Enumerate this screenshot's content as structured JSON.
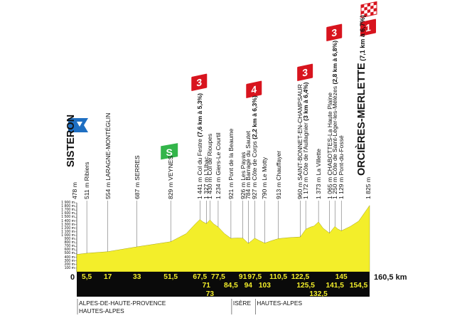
{
  "start": {
    "name": "SISTERON",
    "alt": "478 m"
  },
  "finish": {
    "name": "ORCIÈRES-MERLETTE",
    "alt": "1 825 m",
    "climb": "(7,1 km à 6,7%)"
  },
  "total_km": "160,5 km",
  "start_km": "0",
  "km_labels": [
    {
      "t": "5,5",
      "km": 5.5,
      "row": 0
    },
    {
      "t": "17",
      "km": 17,
      "row": 0
    },
    {
      "t": "33",
      "km": 33,
      "row": 0
    },
    {
      "t": "51,5",
      "km": 51.5,
      "row": 0
    },
    {
      "t": "67,5",
      "km": 67.5,
      "row": 0
    },
    {
      "t": "71",
      "km": 71,
      "row": 1
    },
    {
      "t": "73",
      "km": 73,
      "row": 2
    },
    {
      "t": "77,5",
      "km": 77.5,
      "row": 0
    },
    {
      "t": "84,5",
      "km": 84.5,
      "row": 1
    },
    {
      "t": "91",
      "km": 91,
      "row": 0
    },
    {
      "t": "94",
      "km": 94,
      "row": 1
    },
    {
      "t": "97,5",
      "km": 97.5,
      "row": 0
    },
    {
      "t": "103",
      "km": 103,
      "row": 1
    },
    {
      "t": "110,5",
      "km": 110.5,
      "row": 0
    },
    {
      "t": "122,5",
      "km": 122.5,
      "row": 0
    },
    {
      "t": "125,5",
      "km": 125.5,
      "row": 1
    },
    {
      "t": "132,5",
      "km": 132.5,
      "row": 2
    },
    {
      "t": "141,5",
      "km": 141.5,
      "row": 1
    },
    {
      "t": "145",
      "km": 145,
      "row": 0
    },
    {
      "t": "154,5",
      "km": 154.5,
      "row": 1
    }
  ],
  "waypoints": [
    {
      "t": "511 m Ribiers",
      "km": 5.5
    },
    {
      "t": "554 m LARAGNE-MONTÉGLIN",
      "km": 17
    },
    {
      "t": "687 m SERRES",
      "km": 33
    },
    {
      "t": "829 m VEYNES",
      "km": 51.5
    },
    {
      "t": "1 441 m Col du Festre",
      "bold": "(7,6 km à 5,3%)",
      "km": 67.5
    },
    {
      "t": "1 327 m L'Ubac",
      "km": 71
    },
    {
      "t": "1 430 m Col de Rioupes",
      "km": 73
    },
    {
      "t": "1 234 m Giers-Le Courtil",
      "km": 77.5
    },
    {
      "t": "921 m Pont de la Beaume",
      "km": 84.5
    },
    {
      "t": "926 m Les Payas",
      "km": 91
    },
    {
      "t": "784 m Barrage du Sautet",
      "km": 94
    },
    {
      "t": "927 m Côte de Corps",
      "bold": "(2,2 km à 6,3%)",
      "km": 97.5
    },
    {
      "t": "790 m Le Motty",
      "km": 103
    },
    {
      "t": "913 m Chauffayer",
      "km": 110.5
    },
    {
      "t": "960 m SAINT-BONNET-EN-CHAMPSAUR",
      "km": 122.5
    },
    {
      "t": "1 172 m Côte de l'Aullagnier",
      "bold": "(3 km à 6,4%)",
      "km": 125.5
    },
    {
      "t": "1 373 m La Villette",
      "km": 132.5
    },
    {
      "t": "1 065 m CHABOTTES-La Haute Plaine",
      "km": 138.5
    },
    {
      "t": "1 250 m Côte de Saint-Léger-les-Mélèzes",
      "bold": "(2,8 km à 6,8%)",
      "km": 141.5
    },
    {
      "t": "1 129 m Pont-du-Fossé",
      "km": 145
    }
  ],
  "climbs": [
    {
      "cat": "3",
      "km": 67.5
    },
    {
      "cat": "4",
      "km": 97.5
    },
    {
      "cat": "3",
      "km": 125.5
    },
    {
      "cat": "3",
      "km": 141.5
    },
    {
      "cat": "1",
      "km": 160.5
    }
  ],
  "sprint": {
    "label": "S",
    "km": 51.5
  },
  "yaxis": [
    "1 900 m",
    "1 800 m",
    "1 700 m",
    "1 600 m",
    "1 500 m",
    "1 400 m",
    "1 300 m",
    "1 200 m",
    "1 100 m",
    "1 000 m",
    "900 m",
    "800 m",
    "700 m",
    "600 m",
    "500 m",
    "400 m",
    "300 m",
    "200 m",
    "100 m"
  ],
  "profile": [
    [
      0,
      478
    ],
    [
      5.5,
      511
    ],
    [
      17,
      554
    ],
    [
      33,
      687
    ],
    [
      51.5,
      829
    ],
    [
      60,
      1050
    ],
    [
      65,
      1320
    ],
    [
      67.5,
      1441
    ],
    [
      69,
      1380
    ],
    [
      71,
      1327
    ],
    [
      73,
      1430
    ],
    [
      75,
      1320
    ],
    [
      77.5,
      1234
    ],
    [
      81,
      1050
    ],
    [
      84.5,
      921
    ],
    [
      88,
      930
    ],
    [
      91,
      926
    ],
    [
      94,
      784
    ],
    [
      96,
      860
    ],
    [
      97.5,
      927
    ],
    [
      100,
      860
    ],
    [
      103,
      790
    ],
    [
      107,
      860
    ],
    [
      110.5,
      913
    ],
    [
      116,
      940
    ],
    [
      122.5,
      960
    ],
    [
      125.5,
      1172
    ],
    [
      128,
      1230
    ],
    [
      130,
      1260
    ],
    [
      132.5,
      1373
    ],
    [
      135,
      1200
    ],
    [
      138.5,
      1065
    ],
    [
      141.5,
      1250
    ],
    [
      143,
      1180
    ],
    [
      145,
      1129
    ],
    [
      150,
      1250
    ],
    [
      154.5,
      1395
    ],
    [
      160.5,
      1825
    ]
  ],
  "departments": [
    {
      "t": "ALPES-DE-HAUTE-PROVENCE",
      "row": 0,
      "x_km": 0
    },
    {
      "t": "HAUTES-ALPES",
      "row": 1,
      "x_km": 0
    },
    {
      "t": "ISÈRE",
      "row": 0,
      "x_km": 84.5
    },
    {
      "t": "HAUTES-ALPES",
      "row": 0,
      "x_km": 97.5
    }
  ],
  "colors": {
    "profile": "#f3ee2a",
    "band": "#0a0a0a",
    "climb": "#d8141e",
    "sprint": "#33b54a",
    "start": "#1f6fc2",
    "km_text": "#f3ee2a"
  },
  "icons": {
    "start": "start-flag-icon",
    "finish": "checkered-flag-icon",
    "sprint": "sprint-icon"
  }
}
